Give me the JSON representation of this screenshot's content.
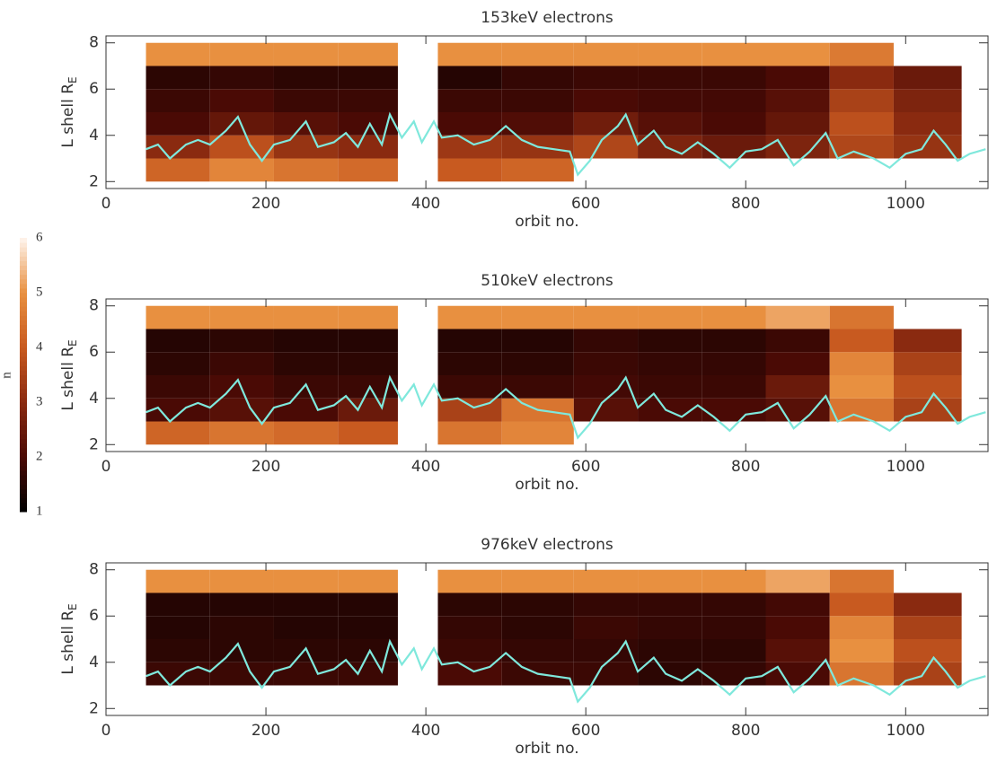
{
  "chart_data": [
    {
      "type": "heatmap",
      "title": "153keV electrons",
      "xlabel": "orbit no.",
      "ylabel": "L shell R",
      "ylabel_subscript": "E",
      "xlim": [
        0,
        1103
      ],
      "ylim": [
        1.7,
        8.3
      ],
      "xticks": [
        0,
        200,
        400,
        600,
        800,
        1000
      ],
      "yticks": [
        2,
        4,
        6,
        8
      ],
      "x_edges": [
        50,
        130,
        210,
        290,
        365,
        415,
        495,
        585,
        665,
        745,
        825,
        905,
        985,
        1070
      ],
      "y_edges": [
        2,
        3,
        4,
        5,
        6,
        7,
        8
      ],
      "z": [
        [
          4.2,
          4.8,
          4.5,
          4.3,
          null,
          4.0,
          4.2,
          null,
          null,
          null,
          null,
          null,
          null
        ],
        [
          3.0,
          3.8,
          3.2,
          3.0,
          null,
          3.3,
          3.2,
          3.6,
          2.8,
          2.5,
          2.8,
          3.6,
          3.2
        ],
        [
          2.0,
          2.4,
          2.2,
          2.0,
          null,
          2.0,
          2.1,
          2.6,
          2.2,
          2.0,
          2.4,
          3.8,
          3.0
        ],
        [
          1.8,
          2.0,
          1.8,
          1.8,
          null,
          1.8,
          1.8,
          2.0,
          1.9,
          1.9,
          2.2,
          3.5,
          2.8
        ],
        [
          1.6,
          1.7,
          1.6,
          1.6,
          null,
          1.5,
          1.7,
          1.8,
          1.8,
          1.8,
          2.0,
          3.0,
          2.5
        ],
        [
          5.0,
          5.0,
          5.0,
          5.0,
          null,
          5.0,
          5.0,
          5.0,
          5.0,
          5.0,
          5.0,
          4.6,
          null
        ]
      ],
      "series": [
        {
          "color": "#7fe8dc",
          "x": [
            50,
            65,
            80,
            100,
            115,
            130,
            150,
            165,
            180,
            195,
            210,
            230,
            250,
            265,
            285,
            300,
            315,
            330,
            345,
            355,
            370,
            385,
            395,
            410,
            420,
            440,
            460,
            480,
            500,
            520,
            540,
            560,
            580,
            590,
            605,
            620,
            640,
            650,
            665,
            685,
            700,
            720,
            740,
            760,
            780,
            800,
            820,
            840,
            860,
            880,
            900,
            915,
            935,
            960,
            980,
            1000,
            1020,
            1035,
            1050,
            1065,
            1080,
            1100
          ],
          "values": [
            3.4,
            3.6,
            3.0,
            3.6,
            3.8,
            3.6,
            4.2,
            4.8,
            3.6,
            2.9,
            3.6,
            3.8,
            4.6,
            3.5,
            3.7,
            4.1,
            3.5,
            4.5,
            3.6,
            4.9,
            3.9,
            4.6,
            3.7,
            4.6,
            3.9,
            4.0,
            3.6,
            3.8,
            4.4,
            3.8,
            3.5,
            3.4,
            3.3,
            2.3,
            2.9,
            3.8,
            4.4,
            4.9,
            3.6,
            4.2,
            3.5,
            3.2,
            3.7,
            3.2,
            2.6,
            3.3,
            3.4,
            3.8,
            2.7,
            3.3,
            4.1,
            3.0,
            3.3,
            3.0,
            2.6,
            3.2,
            3.4,
            4.2,
            3.6,
            2.9,
            3.2,
            3.4
          ]
        }
      ]
    },
    {
      "type": "heatmap",
      "title": "510keV electrons",
      "xlabel": "orbit no.",
      "ylabel": "L shell R",
      "ylabel_subscript": "E",
      "xlim": [
        0,
        1103
      ],
      "ylim": [
        1.7,
        8.3
      ],
      "xticks": [
        0,
        200,
        400,
        600,
        800,
        1000
      ],
      "yticks": [
        2,
        4,
        6,
        8
      ],
      "x_edges": [
        50,
        130,
        210,
        290,
        365,
        415,
        495,
        585,
        665,
        745,
        825,
        905,
        985,
        1070
      ],
      "y_edges": [
        2,
        3,
        4,
        5,
        6,
        7,
        8
      ],
      "z": [
        [
          4.2,
          4.5,
          4.3,
          4.0,
          null,
          4.5,
          4.8,
          null,
          null,
          null,
          null,
          null,
          null
        ],
        [
          2.0,
          2.2,
          2.0,
          2.5,
          null,
          3.5,
          4.5,
          2.2,
          2.0,
          2.0,
          2.2,
          4.5,
          3.5
        ],
        [
          1.8,
          2.0,
          1.8,
          1.8,
          null,
          1.8,
          1.8,
          1.9,
          1.8,
          1.8,
          2.5,
          5.0,
          3.8
        ],
        [
          1.6,
          1.8,
          1.6,
          1.6,
          null,
          1.6,
          1.6,
          1.8,
          1.7,
          1.7,
          2.0,
          4.8,
          3.5
        ],
        [
          1.5,
          1.6,
          1.5,
          1.5,
          null,
          1.5,
          1.5,
          1.7,
          1.6,
          1.6,
          1.8,
          4.0,
          3.0
        ],
        [
          5.0,
          5.0,
          5.0,
          5.0,
          null,
          5.0,
          5.0,
          5.0,
          5.0,
          5.0,
          5.2,
          4.5,
          null
        ]
      ],
      "series": [
        {
          "color": "#7fe8dc",
          "x": [
            50,
            65,
            80,
            100,
            115,
            130,
            150,
            165,
            180,
            195,
            210,
            230,
            250,
            265,
            285,
            300,
            315,
            330,
            345,
            355,
            370,
            385,
            395,
            410,
            420,
            440,
            460,
            480,
            500,
            520,
            540,
            560,
            580,
            590,
            605,
            620,
            640,
            650,
            665,
            685,
            700,
            720,
            740,
            760,
            780,
            800,
            820,
            840,
            860,
            880,
            900,
            915,
            935,
            960,
            980,
            1000,
            1020,
            1035,
            1050,
            1065,
            1080,
            1100
          ],
          "values": [
            3.4,
            3.6,
            3.0,
            3.6,
            3.8,
            3.6,
            4.2,
            4.8,
            3.6,
            2.9,
            3.6,
            3.8,
            4.6,
            3.5,
            3.7,
            4.1,
            3.5,
            4.5,
            3.6,
            4.9,
            3.9,
            4.6,
            3.7,
            4.6,
            3.9,
            4.0,
            3.6,
            3.8,
            4.4,
            3.8,
            3.5,
            3.4,
            3.3,
            2.3,
            2.9,
            3.8,
            4.4,
            4.9,
            3.6,
            4.2,
            3.5,
            3.2,
            3.7,
            3.2,
            2.6,
            3.3,
            3.4,
            3.8,
            2.7,
            3.3,
            4.1,
            3.0,
            3.3,
            3.0,
            2.6,
            3.2,
            3.4,
            4.2,
            3.6,
            2.9,
            3.2,
            3.4
          ]
        }
      ]
    },
    {
      "type": "heatmap",
      "title": "976keV electrons",
      "xlabel": "orbit no.",
      "ylabel": "L shell R",
      "ylabel_subscript": "E",
      "xlim": [
        0,
        1103
      ],
      "ylim": [
        1.7,
        8.3
      ],
      "xticks": [
        0,
        200,
        400,
        600,
        800,
        1000
      ],
      "yticks": [
        2,
        4,
        6,
        8
      ],
      "x_edges": [
        50,
        130,
        210,
        290,
        365,
        415,
        495,
        585,
        665,
        745,
        825,
        905,
        985,
        1070
      ],
      "y_edges": [
        2,
        3,
        4,
        5,
        6,
        7,
        8
      ],
      "z": [
        [
          null,
          null,
          null,
          null,
          null,
          null,
          null,
          null,
          null,
          null,
          null,
          null,
          null
        ],
        [
          1.8,
          1.8,
          1.8,
          1.8,
          null,
          2.0,
          1.8,
          1.8,
          1.6,
          1.7,
          2.0,
          4.5,
          3.5
        ],
        [
          1.6,
          1.6,
          1.6,
          1.6,
          null,
          1.8,
          1.7,
          1.7,
          1.6,
          1.6,
          2.2,
          5.0,
          3.8
        ],
        [
          1.5,
          1.6,
          1.5,
          1.5,
          null,
          1.7,
          1.6,
          1.8,
          1.7,
          1.7,
          2.0,
          4.8,
          3.5
        ],
        [
          1.5,
          1.5,
          1.5,
          1.5,
          null,
          1.6,
          1.6,
          1.7,
          1.7,
          1.7,
          1.9,
          4.0,
          3.0
        ],
        [
          5.0,
          5.0,
          5.0,
          5.0,
          null,
          5.0,
          5.0,
          5.0,
          5.0,
          5.0,
          5.2,
          4.5,
          null
        ]
      ],
      "series": [
        {
          "color": "#7fe8dc",
          "x": [
            50,
            65,
            80,
            100,
            115,
            130,
            150,
            165,
            180,
            195,
            210,
            230,
            250,
            265,
            285,
            300,
            315,
            330,
            345,
            355,
            370,
            385,
            395,
            410,
            420,
            440,
            460,
            480,
            500,
            520,
            540,
            560,
            580,
            590,
            605,
            620,
            640,
            650,
            665,
            685,
            700,
            720,
            740,
            760,
            780,
            800,
            820,
            840,
            860,
            880,
            900,
            915,
            935,
            960,
            980,
            1000,
            1020,
            1035,
            1050,
            1065,
            1080,
            1100
          ],
          "values": [
            3.4,
            3.6,
            3.0,
            3.6,
            3.8,
            3.6,
            4.2,
            4.8,
            3.6,
            2.9,
            3.6,
            3.8,
            4.6,
            3.5,
            3.7,
            4.1,
            3.5,
            4.5,
            3.6,
            4.9,
            3.9,
            4.6,
            3.7,
            4.6,
            3.9,
            4.0,
            3.6,
            3.8,
            4.4,
            3.8,
            3.5,
            3.4,
            3.3,
            2.3,
            2.9,
            3.8,
            4.4,
            4.9,
            3.6,
            4.2,
            3.5,
            3.2,
            3.7,
            3.2,
            2.6,
            3.3,
            3.4,
            3.8,
            2.7,
            3.3,
            4.1,
            3.0,
            3.3,
            3.0,
            2.6,
            3.2,
            3.4,
            4.2,
            3.6,
            2.9,
            3.2,
            3.4
          ]
        }
      ]
    }
  ],
  "colorbar": {
    "label": "n",
    "lim": [
      1,
      6
    ],
    "ticks": [
      1,
      2,
      3,
      4,
      5,
      6
    ],
    "colors": [
      "#000000",
      "#4a0a05",
      "#8a2a10",
      "#c85a20",
      "#e89040",
      "#fff5ee"
    ]
  }
}
